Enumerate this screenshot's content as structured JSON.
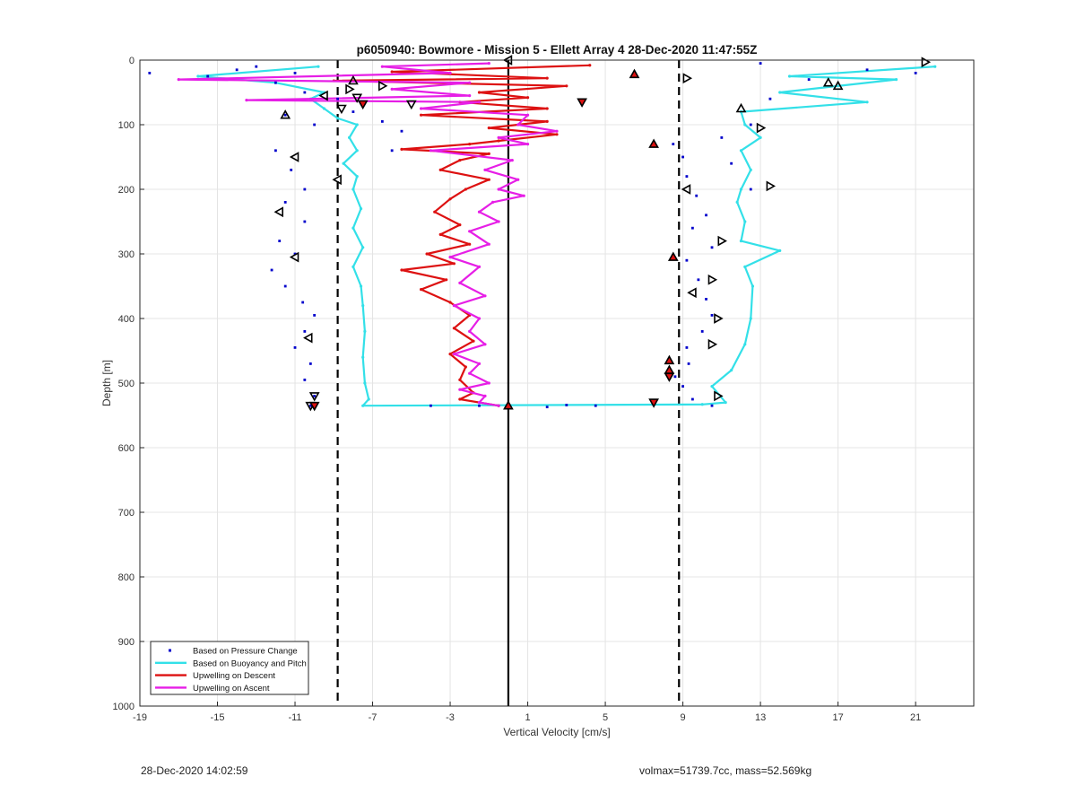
{
  "footer": {
    "timestamp": "28-Dec-2020 14:02:59",
    "info": "volmax=51739.7cc, mass=52.569kg"
  },
  "chart_data": {
    "type": "scatter",
    "title": "p6050940: Bowmore - Mission 5 - Ellett Array 4 28-Dec-2020 11:47:55Z",
    "xlabel": "Vertical Velocity [cm/s]",
    "ylabel": "Depth [m]",
    "xlim": [
      -19,
      24
    ],
    "ylim": [
      1000,
      0
    ],
    "y_reversed": true,
    "xticks": [
      -19,
      -15,
      -11,
      -7,
      -3,
      1,
      5,
      9,
      13,
      17,
      21
    ],
    "yticks": [
      0,
      100,
      200,
      300,
      400,
      500,
      600,
      700,
      800,
      900,
      1000
    ],
    "grid": true,
    "legend_position": "bottom-left",
    "reference_lines": [
      {
        "x": -8.8,
        "style": "dashed",
        "color": "#000000"
      },
      {
        "x": 0.0,
        "style": "solid",
        "color": "#000000"
      },
      {
        "x": 8.8,
        "style": "dashed",
        "color": "#000000"
      }
    ],
    "series": [
      {
        "name": "Based on Pressure Change",
        "style": "dots",
        "color": "#0000cc",
        "segments": [
          [
            [
              -18.5,
              20
            ],
            [
              -15.5,
              25
            ],
            [
              -14,
              15
            ],
            [
              -13,
              10
            ],
            [
              -12,
              35
            ],
            [
              -11,
              20
            ],
            [
              -10.5,
              50
            ],
            [
              -11.5,
              85
            ],
            [
              -10,
              100
            ],
            [
              -12,
              140
            ],
            [
              -11.2,
              170
            ],
            [
              -10.5,
              200
            ],
            [
              -11.5,
              220
            ],
            [
              -10.5,
              250
            ],
            [
              -11.8,
              280
            ],
            [
              -11,
              300
            ],
            [
              -12.2,
              325
            ],
            [
              -11.5,
              350
            ],
            [
              -10.6,
              375
            ],
            [
              -10,
              395
            ],
            [
              -10.5,
              420
            ],
            [
              -11,
              445
            ],
            [
              -10.2,
              470
            ],
            [
              -10.5,
              495
            ],
            [
              -10,
              520
            ],
            [
              -10.2,
              535
            ]
          ],
          [
            [
              8.5,
              130
            ],
            [
              9,
              150
            ],
            [
              9.2,
              180
            ],
            [
              9.7,
              210
            ],
            [
              10.2,
              240
            ],
            [
              9.5,
              260
            ],
            [
              10.5,
              290
            ],
            [
              9.2,
              310
            ],
            [
              9.8,
              340
            ],
            [
              10.2,
              370
            ],
            [
              10.5,
              395
            ],
            [
              10,
              420
            ],
            [
              9.2,
              445
            ],
            [
              9.3,
              470
            ],
            [
              8.6,
              490
            ],
            [
              9,
              505
            ],
            [
              9.5,
              525
            ],
            [
              10.5,
              535
            ]
          ],
          [
            [
              13,
              5
            ],
            [
              18.5,
              15
            ],
            [
              21,
              20
            ],
            [
              15.5,
              30
            ],
            [
              13.5,
              60
            ],
            [
              12.5,
              100
            ],
            [
              11,
              120
            ],
            [
              11.5,
              160
            ],
            [
              12.5,
              200
            ]
          ],
          [
            [
              -8.8,
              60
            ],
            [
              -8,
              80
            ],
            [
              -6.5,
              95
            ],
            [
              -5.5,
              110
            ],
            [
              -6,
              140
            ]
          ],
          [
            [
              -4,
              535
            ],
            [
              -1.5,
              535
            ],
            [
              2,
              537
            ],
            [
              3,
              534
            ],
            [
              4.5,
              535
            ]
          ]
        ]
      },
      {
        "name": "Based on Buoyancy and Pitch",
        "style": "line",
        "color": "#33e0e8",
        "segments": [
          [
            [
              -9.8,
              10
            ],
            [
              -16,
              25
            ],
            [
              -12,
              35
            ],
            [
              -9.5,
              50
            ],
            [
              -10.2,
              60
            ],
            [
              -9.5,
              75
            ],
            [
              -8.8,
              90
            ],
            [
              -7.8,
              100
            ],
            [
              -8.2,
              120
            ],
            [
              -7.8,
              140
            ],
            [
              -8.5,
              160
            ],
            [
              -7.8,
              180
            ],
            [
              -8,
              200
            ],
            [
              -7.6,
              230
            ],
            [
              -8,
              260
            ],
            [
              -7.5,
              290
            ],
            [
              -8,
              320
            ],
            [
              -7.6,
              350
            ],
            [
              -7.5,
              380
            ],
            [
              -7.4,
              420
            ],
            [
              -7.5,
              460
            ],
            [
              -7.4,
              500
            ],
            [
              -7.2,
              525
            ],
            [
              -7.5,
              535
            ],
            [
              10,
              533
            ],
            [
              11.2,
              530
            ],
            [
              10.5,
              505
            ],
            [
              11.5,
              480
            ],
            [
              12.2,
              440
            ],
            [
              12.5,
              400
            ],
            [
              12.6,
              350
            ],
            [
              12.2,
              320
            ],
            [
              14,
              295
            ],
            [
              12,
              280
            ],
            [
              12.2,
              250
            ],
            [
              11.8,
              220
            ],
            [
              12,
              200
            ],
            [
              12.5,
              170
            ],
            [
              12,
              140
            ],
            [
              13,
              120
            ],
            [
              12.2,
              100
            ],
            [
              12,
              80
            ],
            [
              18.5,
              65
            ],
            [
              14,
              50
            ],
            [
              20,
              30
            ],
            [
              14.5,
              25
            ],
            [
              22,
              10
            ]
          ]
        ]
      },
      {
        "name": "Upwelling on Descent",
        "style": "line",
        "color": "#dd1111",
        "segments": [
          [
            [
              4.2,
              8
            ],
            [
              -6,
              18
            ],
            [
              2,
              28
            ],
            [
              -9,
              32
            ],
            [
              3,
              40
            ],
            [
              -1.5,
              50
            ],
            [
              1,
              58
            ],
            [
              -2.5,
              65
            ],
            [
              2,
              75
            ],
            [
              -4.5,
              85
            ],
            [
              2,
              95
            ],
            [
              -1,
              105
            ],
            [
              2.5,
              115
            ],
            [
              -0.5,
              125
            ],
            [
              -2,
              130
            ],
            [
              -5.5,
              138
            ],
            [
              -1,
              145
            ],
            [
              -2.5,
              155
            ],
            [
              -3.5,
              170
            ],
            [
              -1,
              185
            ],
            [
              -2.2,
              200
            ],
            [
              -3,
              215
            ],
            [
              -3.8,
              235
            ],
            [
              -2.5,
              255
            ],
            [
              -3.5,
              270
            ],
            [
              -2,
              285
            ],
            [
              -4.2,
              300
            ],
            [
              -2.8,
              315
            ],
            [
              -5.5,
              325
            ],
            [
              -3.2,
              340
            ],
            [
              -4.5,
              355
            ],
            [
              -3,
              375
            ],
            [
              -2,
              395
            ],
            [
              -2.8,
              415
            ],
            [
              -1.8,
              435
            ],
            [
              -3,
              455
            ],
            [
              -2.2,
              475
            ],
            [
              -2.5,
              495
            ],
            [
              -1.8,
              515
            ],
            [
              -2.5,
              525
            ],
            [
              -0.5,
              535
            ]
          ]
        ]
      },
      {
        "name": "Upwelling on Ascent",
        "style": "line",
        "color": "#e61ee6",
        "segments": [
          [
            [
              -0.5,
              535
            ],
            [
              -1.5,
              530
            ],
            [
              -1.2,
              520
            ],
            [
              -2.5,
              510
            ],
            [
              -1,
              500
            ],
            [
              -2,
              485
            ],
            [
              -1.5,
              470
            ],
            [
              -2.8,
              455
            ],
            [
              -1.2,
              440
            ],
            [
              -2,
              420
            ],
            [
              -1.5,
              400
            ],
            [
              -2.8,
              380
            ],
            [
              -1.2,
              365
            ],
            [
              -2.5,
              345
            ],
            [
              -1.5,
              320
            ],
            [
              -3,
              305
            ],
            [
              -1,
              285
            ],
            [
              -2,
              265
            ],
            [
              -0.5,
              250
            ],
            [
              -1.5,
              235
            ],
            [
              -0.8,
              220
            ],
            [
              0.8,
              210
            ],
            [
              -0.5,
              200
            ],
            [
              0.5,
              185
            ],
            [
              -1.2,
              170
            ],
            [
              0.2,
              155
            ],
            [
              -4,
              140
            ],
            [
              1,
              130
            ],
            [
              -0.5,
              120
            ],
            [
              2.5,
              110
            ],
            [
              0.5,
              100
            ],
            [
              1,
              85
            ],
            [
              -4.5,
              75
            ],
            [
              -1.5,
              65
            ],
            [
              -13.5,
              62
            ],
            [
              -2,
              55
            ],
            [
              -6,
              45
            ],
            [
              -2,
              35
            ],
            [
              -17,
              30
            ],
            [
              -3,
              20
            ],
            [
              -6.5,
              10
            ],
            [
              -1,
              5
            ]
          ]
        ]
      }
    ],
    "markers": [
      {
        "shape": "triangle-left",
        "fill": "none",
        "points": [
          [
            -11,
            150
          ],
          [
            -11.8,
            235
          ],
          [
            -11,
            305
          ],
          [
            -10.3,
            430
          ],
          [
            -8.8,
            185
          ],
          [
            -9.5,
            55
          ],
          [
            0,
            0
          ],
          [
            9.2,
            200
          ],
          [
            9.5,
            360
          ]
        ]
      },
      {
        "shape": "triangle-right",
        "fill": "none",
        "points": [
          [
            21.5,
            3
          ],
          [
            9.2,
            28
          ],
          [
            13,
            105
          ],
          [
            13.5,
            195
          ],
          [
            11,
            280
          ],
          [
            10.5,
            340
          ],
          [
            10.8,
            400
          ],
          [
            10.5,
            440
          ],
          [
            10.8,
            520
          ],
          [
            -6.5,
            40
          ],
          [
            -8.2,
            45
          ]
        ]
      },
      {
        "shape": "triangle-up",
        "fill": "none",
        "points": [
          [
            -11.5,
            85
          ],
          [
            -8,
            32
          ],
          [
            17,
            40
          ],
          [
            16.5,
            35
          ],
          [
            12,
            75
          ]
        ]
      },
      {
        "shape": "triangle-down",
        "fill": "none",
        "points": [
          [
            -8.6,
            75
          ],
          [
            -7.8,
            58
          ],
          [
            -5,
            68
          ],
          [
            -10.2,
            535
          ],
          [
            -10,
            520
          ]
        ]
      },
      {
        "shape": "triangle-up",
        "fill": "#dd1111",
        "points": [
          [
            6.5,
            22
          ],
          [
            7.5,
            130
          ],
          [
            8.5,
            305
          ],
          [
            8.3,
            465
          ],
          [
            8.3,
            480
          ],
          [
            0,
            535
          ]
        ]
      },
      {
        "shape": "triangle-down",
        "fill": "#dd1111",
        "points": [
          [
            3.8,
            65
          ],
          [
            7.5,
            530
          ],
          [
            8.3,
            490
          ],
          [
            -10,
            535
          ],
          [
            -7.5,
            68
          ]
        ]
      }
    ]
  }
}
